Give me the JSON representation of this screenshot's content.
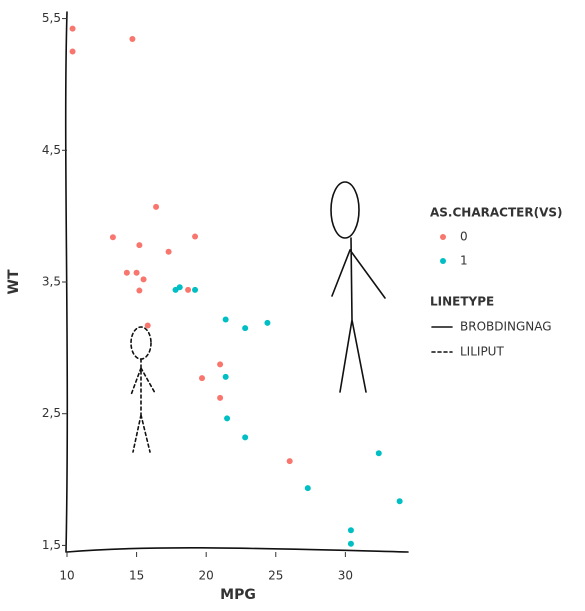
{
  "chart_data": {
    "type": "scatter",
    "x_label": "MPG",
    "y_label": "WT",
    "xlim": [
      10,
      34.5
    ],
    "ylim": [
      1.45,
      5.55
    ],
    "xticks": [
      10,
      15,
      20,
      25,
      30
    ],
    "yticks": [
      {
        "value": 1.5,
        "label": "1,5"
      },
      {
        "value": 2.5,
        "label": "2,5"
      },
      {
        "value": 3.5,
        "label": "3,5"
      },
      {
        "value": 4.5,
        "label": "4,5"
      },
      {
        "value": 5.5,
        "label": "5,5"
      }
    ],
    "legend_title": "AS.CHARACTER(VS)",
    "series": [
      {
        "name": "0",
        "color": "#f8766d",
        "x": [
          21.0,
          21.0,
          18.7,
          14.3,
          16.4,
          17.3,
          15.2,
          10.4,
          10.4,
          14.7,
          15.5,
          15.2,
          13.3,
          19.2,
          26.0,
          15.8,
          19.7,
          15.0
        ],
        "values": [
          2.62,
          2.875,
          3.44,
          3.57,
          4.07,
          3.73,
          3.78,
          5.25,
          5.424,
          5.345,
          3.52,
          3.435,
          3.84,
          3.845,
          2.14,
          3.17,
          2.77,
          3.57
        ]
      },
      {
        "name": "1",
        "color": "#00bfc4",
        "x": [
          22.8,
          21.4,
          18.1,
          24.4,
          22.8,
          19.2,
          17.8,
          32.4,
          30.4,
          33.9,
          21.5,
          27.3,
          30.4,
          21.4
        ],
        "values": [
          2.32,
          3.215,
          3.46,
          3.19,
          3.15,
          3.44,
          3.44,
          2.2,
          1.615,
          1.835,
          2.465,
          1.935,
          1.513,
          2.78
        ]
      }
    ],
    "linetype_legend": {
      "title": "LINETYPE",
      "entries": [
        "BROBDINGNAG",
        "LILIPUT"
      ]
    }
  }
}
